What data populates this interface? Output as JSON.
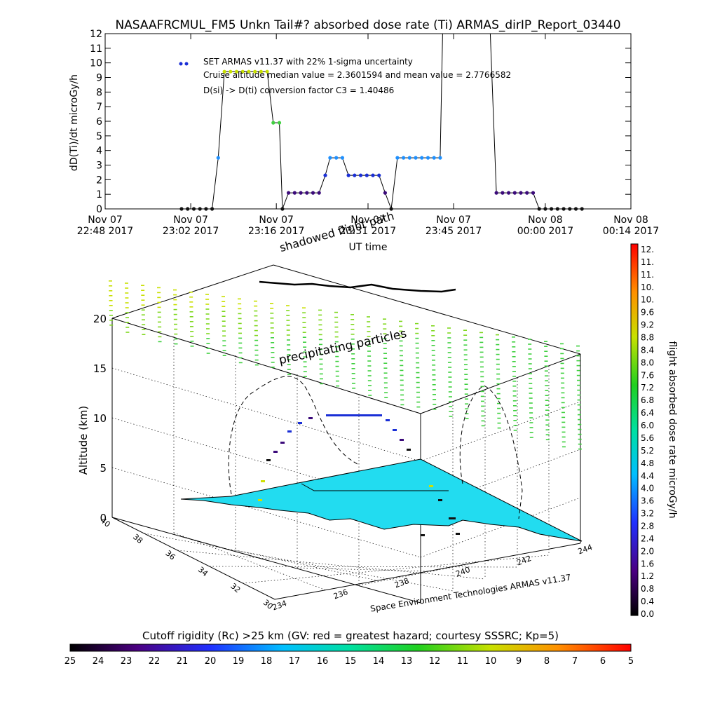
{
  "title": "NASAAFRCMUL_FM5 Unkn Tail#? absorbed dose rate (Ti) ARMAS_dirIP_Report_03440",
  "chart_data": [
    {
      "type": "line",
      "ylabel": "dD(Ti)/dt microGy/h",
      "xlabel": "UT time",
      "ylim": [
        0,
        12
      ],
      "yticks": [
        0,
        1,
        2,
        3,
        4,
        5,
        6,
        7,
        8,
        9,
        10,
        11,
        12
      ],
      "xticks": [
        {
          "line1": "Nov 07",
          "line2": "22:48 2017",
          "min": 0
        },
        {
          "line1": "Nov 07",
          "line2": "23:02 2017",
          "min": 14
        },
        {
          "line1": "Nov 07",
          "line2": "23:16 2017",
          "min": 28
        },
        {
          "line1": "Nov 07",
          "line2": "23:31 2017",
          "min": 43
        },
        {
          "line1": "Nov 07",
          "line2": "23:45 2017",
          "min": 57
        },
        {
          "line1": "Nov 08",
          "line2": "00:00 2017",
          "min": 72
        },
        {
          "line1": "Nov 08",
          "line2": "00:14 2017",
          "min": 86
        }
      ],
      "xlim_minutes": [
        0,
        86
      ],
      "legend": [
        "SET ARMAS v11.37 with 22% 1-sigma uncertainty",
        "Cruise altitude median value = 2.3601594 and mean value = 2.7766582",
        "D(si) -> D(ti) conversion factor C3 = 1.40486"
      ],
      "annotation": "shadowed flight path",
      "series": [
        {
          "points": [
            [
              12.5,
              0
            ],
            [
              13.5,
              0
            ],
            [
              14.5,
              0
            ],
            [
              15.5,
              0
            ],
            [
              16.5,
              0
            ],
            [
              17.5,
              0
            ],
            [
              18.5,
              3.5
            ],
            [
              19.5,
              9.4
            ],
            [
              20.5,
              9.4
            ],
            [
              21.5,
              9.4
            ],
            [
              22.5,
              9.4
            ],
            [
              23.5,
              9.4
            ],
            [
              24.5,
              9.4
            ],
            [
              25.5,
              9.4
            ],
            [
              26.5,
              9.4
            ],
            [
              27.5,
              5.9
            ],
            [
              28.5,
              5.9
            ],
            [
              29,
              0
            ],
            [
              30,
              1.1
            ],
            [
              31,
              1.1
            ],
            [
              32,
              1.1
            ],
            [
              33,
              1.1
            ],
            [
              34,
              1.1
            ],
            [
              35,
              1.1
            ],
            [
              36,
              2.3
            ],
            [
              36.8,
              3.5
            ],
            [
              37.8,
              3.5
            ],
            [
              38.8,
              3.5
            ],
            [
              39.8,
              2.3
            ],
            [
              40.8,
              2.3
            ],
            [
              41.8,
              2.3
            ],
            [
              42.8,
              2.3
            ],
            [
              43.8,
              2.3
            ],
            [
              44.8,
              2.3
            ],
            [
              45.8,
              1.1
            ],
            [
              46.8,
              0
            ],
            [
              47.8,
              3.5
            ],
            [
              48.8,
              3.5
            ],
            [
              49.8,
              3.5
            ],
            [
              50.8,
              3.5
            ],
            [
              51.8,
              3.5
            ],
            [
              52.8,
              3.5
            ],
            [
              53.8,
              3.5
            ],
            [
              54.8,
              3.5
            ],
            [
              55.2,
              12
            ],
            [
              63,
              12
            ],
            [
              64,
              1.1
            ],
            [
              65,
              1.1
            ],
            [
              66,
              1.1
            ],
            [
              67,
              1.1
            ],
            [
              68,
              1.1
            ],
            [
              69,
              1.1
            ],
            [
              70,
              1.1
            ],
            [
              71,
              0
            ],
            [
              72,
              0
            ],
            [
              73,
              0
            ],
            [
              74,
              0
            ],
            [
              75,
              0
            ],
            [
              76,
              0
            ],
            [
              77,
              0
            ],
            [
              78,
              0
            ]
          ]
        }
      ]
    },
    {
      "type": "scatter",
      "ylabel": "Altitude (km)",
      "zticks": [
        0,
        5,
        10,
        15,
        20
      ],
      "lat_ticks": [
        40,
        38,
        36,
        34,
        32,
        30
      ],
      "lon_ticks": [
        234,
        236,
        238,
        240,
        242,
        244
      ],
      "annotation": "precipitating particles",
      "credit": "Space Environment Technologies ARMAS v11.37"
    },
    {
      "type": "heatmap",
      "title": "flight absorbed dose rate microGy/h",
      "ticks": [
        "12.",
        "11.",
        "11.",
        "10.",
        "10.",
        "9.6",
        "9.2",
        "8.8",
        "8.4",
        "8.0",
        "7.6",
        "7.2",
        "6.8",
        "6.4",
        "6.0",
        "5.6",
        "5.2",
        "4.8",
        "4.4",
        "4.0",
        "3.6",
        "3.2",
        "2.8",
        "2.4",
        "2.0",
        "1.6",
        "1.2",
        "0.8",
        "0.4",
        "0.0"
      ]
    },
    {
      "type": "heatmap",
      "title": "Cutoff rigidity (Rc) >25 km (GV: red = greatest hazard; courtesy SSSRC; Kp=5)",
      "ticks": [
        "25",
        "24",
        "23",
        "22",
        "21",
        "20",
        "19",
        "18",
        "17",
        "16",
        "15",
        "14",
        "13",
        "12",
        "11",
        "10",
        "9",
        "8",
        "7",
        "6",
        "5"
      ]
    }
  ]
}
